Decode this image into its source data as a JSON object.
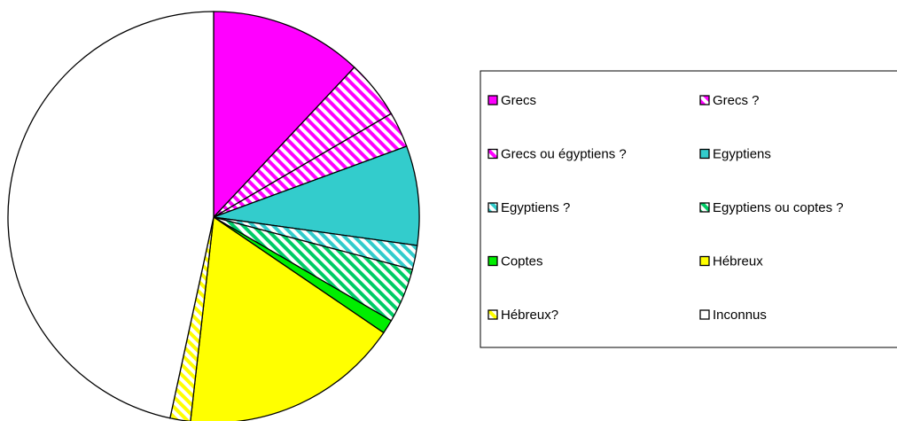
{
  "chart_data": {
    "type": "pie",
    "categories": [
      "Grecs",
      "Grecs ?",
      "Grecs ou égyptiens ?",
      "Egyptiens",
      "Egyptiens ?",
      "Egyptiens ou coptes ?",
      "Coptes",
      "Hébreux",
      "Hébreux?",
      "Inconnus"
    ],
    "values": [
      12,
      4.6,
      2.8,
      7.8,
      1.9,
      4.3,
      1.1,
      17.3,
      1.6,
      46.6
    ],
    "colors": [
      "#ff00ff",
      "#ff00ff",
      "#ff00ff",
      "#33cccc",
      "#33cccc",
      "#00cc66",
      "#00ee00",
      "#ffff00",
      "#ffff00",
      "#ffffff"
    ],
    "hatched": [
      false,
      true,
      true,
      false,
      true,
      true,
      false,
      false,
      true,
      false
    ],
    "legend": "right"
  }
}
